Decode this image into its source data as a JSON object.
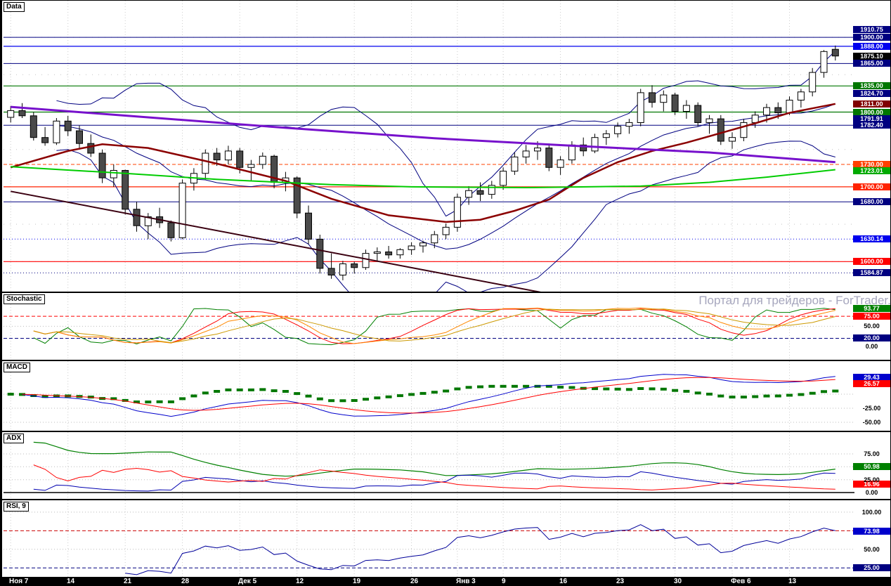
{
  "app": {
    "watermark": "Портал для трейдеров - ForTrader.ru"
  },
  "panels": {
    "main": {
      "label": "Data"
    },
    "stoch": {
      "label": "Stochastic"
    },
    "macd": {
      "label": "MACD"
    },
    "adx": {
      "label": "ADX"
    },
    "rsi": {
      "label": "RSI, 9"
    }
  },
  "time_axis": [
    {
      "text": "Ноя 7",
      "bar": 0
    },
    {
      "text": "14",
      "bar": 5
    },
    {
      "text": "21",
      "bar": 10
    },
    {
      "text": "28",
      "bar": 15
    },
    {
      "text": "Дек 5",
      "bar": 20
    },
    {
      "text": "12",
      "bar": 25
    },
    {
      "text": "19",
      "bar": 30
    },
    {
      "text": "26",
      "bar": 35
    },
    {
      "text": "Янв 3",
      "bar": 39
    },
    {
      "text": "9",
      "bar": 43
    },
    {
      "text": "16",
      "bar": 48
    },
    {
      "text": "23",
      "bar": 53
    },
    {
      "text": "30",
      "bar": 58
    },
    {
      "text": "Фев 6",
      "bar": 63
    },
    {
      "text": "13",
      "bar": 68
    }
  ],
  "chart_data": [
    {
      "type": "candlestick",
      "panel": "main",
      "title": "Data",
      "ylim": [
        1558,
        1949
      ],
      "ohlc": [
        [
          1793,
          1808,
          1786,
          1802
        ],
        [
          1802,
          1812,
          1792,
          1795
        ],
        [
          1795,
          1800,
          1762,
          1766
        ],
        [
          1766,
          1780,
          1755,
          1759
        ],
        [
          1759,
          1792,
          1756,
          1788
        ],
        [
          1788,
          1795,
          1768,
          1775
        ],
        [
          1775,
          1782,
          1752,
          1758
        ],
        [
          1758,
          1770,
          1740,
          1745
        ],
        [
          1745,
          1750,
          1705,
          1712
        ],
        [
          1712,
          1730,
          1700,
          1722
        ],
        [
          1722,
          1723,
          1663,
          1670
        ],
        [
          1670,
          1680,
          1640,
          1648
        ],
        [
          1648,
          1665,
          1630,
          1660
        ],
        [
          1660,
          1672,
          1645,
          1652
        ],
        [
          1652,
          1655,
          1627,
          1632
        ],
        [
          1632,
          1710,
          1630,
          1705
        ],
        [
          1705,
          1725,
          1695,
          1718
        ],
        [
          1718,
          1750,
          1710,
          1745
        ],
        [
          1745,
          1752,
          1728,
          1736
        ],
        [
          1736,
          1755,
          1730,
          1748
        ],
        [
          1748,
          1752,
          1718,
          1726
        ],
        [
          1726,
          1736,
          1708,
          1730
        ],
        [
          1730,
          1746,
          1724,
          1741
        ],
        [
          1741,
          1743,
          1698,
          1706
        ],
        [
          1706,
          1720,
          1694,
          1712
        ],
        [
          1712,
          1714,
          1658,
          1665
        ],
        [
          1665,
          1675,
          1623,
          1630
        ],
        [
          1630,
          1636,
          1584,
          1591
        ],
        [
          1591,
          1611,
          1577,
          1582
        ],
        [
          1582,
          1601,
          1575,
          1597
        ],
        [
          1597,
          1600,
          1584,
          1592
        ],
        [
          1592,
          1616,
          1589,
          1611
        ],
        [
          1611,
          1619,
          1600,
          1613
        ],
        [
          1613,
          1621,
          1604,
          1609
        ],
        [
          1609,
          1618,
          1604,
          1616
        ],
        [
          1616,
          1626,
          1609,
          1621
        ],
        [
          1621,
          1628,
          1612,
          1625
        ],
        [
          1625,
          1641,
          1618,
          1636
        ],
        [
          1636,
          1651,
          1630,
          1646
        ],
        [
          1646,
          1691,
          1640,
          1686
        ],
        [
          1686,
          1701,
          1676,
          1695
        ],
        [
          1695,
          1706,
          1681,
          1690
        ],
        [
          1690,
          1708,
          1684,
          1702
        ],
        [
          1702,
          1726,
          1696,
          1721
        ],
        [
          1721,
          1746,
          1716,
          1740
        ],
        [
          1740,
          1756,
          1731,
          1748
        ],
        [
          1748,
          1761,
          1736,
          1752
        ],
        [
          1752,
          1758,
          1721,
          1726
        ],
        [
          1726,
          1741,
          1716,
          1736
        ],
        [
          1736,
          1761,
          1731,
          1756
        ],
        [
          1756,
          1766,
          1741,
          1748
        ],
        [
          1748,
          1771,
          1745,
          1766
        ],
        [
          1766,
          1776,
          1756,
          1771
        ],
        [
          1771,
          1786,
          1766,
          1781
        ],
        [
          1781,
          1791,
          1771,
          1786
        ],
        [
          1786,
          1831,
          1781,
          1826
        ],
        [
          1826,
          1836,
          1806,
          1813
        ],
        [
          1813,
          1829,
          1801,
          1823
        ],
        [
          1823,
          1826,
          1796,
          1801
        ],
        [
          1801,
          1816,
          1791,
          1809
        ],
        [
          1809,
          1813,
          1781,
          1786
        ],
        [
          1786,
          1796,
          1771,
          1791
        ],
        [
          1791,
          1796,
          1756,
          1761
        ],
        [
          1761,
          1773,
          1751,
          1766
        ],
        [
          1766,
          1791,
          1761,
          1786
        ],
        [
          1786,
          1801,
          1779,
          1796
        ],
        [
          1796,
          1811,
          1786,
          1806
        ],
        [
          1806,
          1813,
          1791,
          1799
        ],
        [
          1799,
          1821,
          1796,
          1816
        ],
        [
          1816,
          1831,
          1806,
          1827
        ],
        [
          1827,
          1859,
          1821,
          1853
        ],
        [
          1853,
          1883,
          1846,
          1881
        ],
        [
          1884,
          1889,
          1869,
          1875.1
        ]
      ],
      "bollinger": {
        "period": 14,
        "mult": 2,
        "color": "#000080"
      },
      "overlays": [
        {
          "name": "ma-slow-darkred",
          "color": "#8b0000",
          "width": 2.5,
          "points": [
            [
              0,
              1726
            ],
            [
              5,
              1748
            ],
            [
              8,
              1757
            ],
            [
              12,
              1752
            ],
            [
              18,
              1731
            ],
            [
              24,
              1708
            ],
            [
              28,
              1684
            ],
            [
              33,
              1662
            ],
            [
              38,
              1653
            ],
            [
              41,
              1656
            ],
            [
              44,
              1668
            ],
            [
              47,
              1683
            ],
            [
              50,
              1712
            ],
            [
              53,
              1733
            ],
            [
              56,
              1748
            ],
            [
              59,
              1759
            ],
            [
              62,
              1772
            ],
            [
              65,
              1785
            ],
            [
              68,
              1799
            ],
            [
              72,
              1811
            ]
          ]
        },
        {
          "name": "ma-purple",
          "color": "#7711cc",
          "width": 3,
          "points": [
            [
              0,
              1807
            ],
            [
              12,
              1793
            ],
            [
              24,
              1779
            ],
            [
              37,
              1765
            ],
            [
              49,
              1755
            ],
            [
              61,
              1746
            ],
            [
              72,
              1733
            ]
          ]
        },
        {
          "name": "ma-green",
          "color": "#00cc00",
          "width": 2,
          "points": [
            [
              0,
              1727
            ],
            [
              10,
              1718
            ],
            [
              18,
              1710
            ],
            [
              28,
              1703
            ],
            [
              35,
              1700
            ],
            [
              45,
              1699
            ],
            [
              55,
              1701
            ],
            [
              61,
              1706
            ],
            [
              66,
              1713
            ],
            [
              72,
              1723
            ]
          ]
        },
        {
          "name": "trendline-down",
          "color": "#3a0010",
          "width": 2,
          "points": [
            [
              0,
              1694
            ],
            [
              48,
              1554
            ]
          ]
        }
      ],
      "grid_prices": [
        1900,
        1850,
        1800,
        1750,
        1700,
        1650,
        1600
      ],
      "hlines": [
        {
          "price": 1900.0,
          "color": "#000080",
          "style": "solid",
          "width": 1
        },
        {
          "price": 1888.0,
          "color": "#0000ee",
          "style": "solid",
          "width": 1.2
        },
        {
          "price": 1865.0,
          "color": "#000080",
          "style": "solid",
          "width": 1
        },
        {
          "price": 1835.0,
          "color": "#007700",
          "style": "solid",
          "width": 1.2
        },
        {
          "price": 1800.0,
          "color": "#007700",
          "style": "solid",
          "width": 1.2
        },
        {
          "price": 1782.4,
          "color": "#000080",
          "style": "solid",
          "width": 1
        },
        {
          "price": 1730.0,
          "color": "#ff4000",
          "style": "dashed",
          "width": 1
        },
        {
          "price": 1700.0,
          "color": "#ff2200",
          "style": "solid",
          "width": 1.2
        },
        {
          "price": 1680.0,
          "color": "#000080",
          "style": "solid",
          "width": 1
        },
        {
          "price": 1630.14,
          "color": "#0000ee",
          "style": "dotted",
          "width": 1
        },
        {
          "price": 1600.0,
          "color": "#ff0000",
          "style": "solid",
          "width": 1.2
        },
        {
          "price": 1584.87,
          "color": "#000080",
          "style": "dotted",
          "width": 1
        }
      ],
      "price_tags": [
        {
          "text": "1910.75",
          "value": 1910.75,
          "bg": "#000080"
        },
        {
          "text": "1900.00",
          "value": 1900.0,
          "bg": "#000080"
        },
        {
          "text": "1888.00",
          "value": 1888.0,
          "bg": "#0000ee"
        },
        {
          "text": "1875.10",
          "value": 1875.1,
          "bg": "#000000"
        },
        {
          "text": "1865.00",
          "value": 1865.0,
          "bg": "#000080"
        },
        {
          "text": "1835.00",
          "value": 1835.0,
          "bg": "#007700"
        },
        {
          "text": "1824.70",
          "value": 1824.7,
          "bg": "#000080"
        },
        {
          "text": "1811.00",
          "value": 1811.0,
          "bg": "#800000"
        },
        {
          "text": "1800.00",
          "value": 1800.0,
          "bg": "#007700"
        },
        {
          "text": "1791.91",
          "value": 1791.91,
          "bg": "#000080"
        },
        {
          "text": "1782.40",
          "value": 1782.4,
          "bg": "#000080"
        },
        {
          "text": "1730.00",
          "value": 1730.0,
          "bg": "#ff4000"
        },
        {
          "text": "1723.01",
          "value": 1723.01,
          "bg": "#00aa00"
        },
        {
          "text": "1700.00",
          "value": 1700.0,
          "bg": "#ff2200"
        },
        {
          "text": "1680.00",
          "value": 1680.0,
          "bg": "#000080"
        },
        {
          "text": "1630.14",
          "value": 1630.14,
          "bg": "#0000ee"
        },
        {
          "text": "1600.00",
          "value": 1600.0,
          "bg": "#ff0000"
        },
        {
          "text": "1584.87",
          "value": 1584.87,
          "bg": "#000080"
        }
      ]
    },
    {
      "type": "stochastic",
      "panel": "stoch",
      "title": "Stochastic",
      "ylim": [
        -37,
        133
      ],
      "series": [
        {
          "name": "k-fast",
          "period": 5,
          "smooth": 2,
          "color": "#008000"
        },
        {
          "name": "d-mid",
          "period": 9,
          "smooth": 5,
          "color": "#ff0000"
        },
        {
          "name": "k-slow",
          "period": 14,
          "smooth": 5,
          "color": "#ff8800"
        },
        {
          "name": "d-slow",
          "period": 14,
          "smooth": 9,
          "color": "#cc9900"
        }
      ],
      "levels": [
        {
          "value": 75,
          "color": "#ff0000",
          "style": "dashed",
          "width": 1
        },
        {
          "value": 50,
          "color": "#bbbbbb",
          "style": "dotted",
          "width": 1
        },
        {
          "value": 20,
          "color": "#000080",
          "style": "dashed",
          "width": 1
        }
      ],
      "tags": [
        {
          "text": "93.77",
          "value": 93.77,
          "bg": "#008000"
        },
        {
          "text": "75.00",
          "value": 75,
          "bg": "#ff0000"
        },
        {
          "text": "20.00",
          "value": 20,
          "bg": "#000080"
        }
      ],
      "scale_texts": [
        {
          "text": "50.00",
          "value": 50
        },
        {
          "text": "0.00",
          "value": 0
        }
      ]
    },
    {
      "type": "macd",
      "panel": "macd",
      "title": "MACD",
      "ylim": [
        -67.5,
        58.75
      ],
      "fast": 12,
      "slow": 26,
      "signal": 9,
      "colors": {
        "macd": "#0000cc",
        "signal": "#ff0000",
        "hist": "#007700"
      },
      "levels": [
        {
          "value": 0,
          "color": "#bbbbbb",
          "style": "dotted",
          "width": 1
        },
        {
          "value": -25,
          "color": "#bbbbbb",
          "style": "dotted",
          "width": 1
        },
        {
          "value": -50,
          "color": "#bbbbbb",
          "style": "dotted",
          "width": 1
        }
      ],
      "tags": [
        {
          "text": "29.43",
          "value": 29.43,
          "bg": "#0000cc"
        },
        {
          "text": "26.57",
          "value": 26.57,
          "bg": "#ff0000"
        }
      ],
      "scale_texts": [
        {
          "text": "-25.00",
          "value": -25
        },
        {
          "text": "-50.00",
          "value": -50
        }
      ]
    },
    {
      "type": "adx",
      "panel": "adx",
      "title": "ADX",
      "ylim": [
        -15,
        117.3
      ],
      "period": 9,
      "colors": {
        "adx": "#008000",
        "plus_di": "#0000b0",
        "minus_di": "#ff0000"
      },
      "levels": [
        {
          "value": 75,
          "color": "#bbbbbb",
          "style": "dotted",
          "width": 1
        },
        {
          "value": 50,
          "color": "#bbbbbb",
          "style": "dotted",
          "width": 1
        },
        {
          "value": 25,
          "color": "#bbbbbb",
          "style": "dotted",
          "width": 1
        },
        {
          "value": 0,
          "color": "#000000",
          "style": "solid",
          "width": 1.5
        }
      ],
      "tags": [
        {
          "text": "50.98",
          "value": 50.98,
          "bg": "#008000"
        },
        {
          "text": "16.96",
          "value": 16.96,
          "bg": "#ff0000"
        }
      ],
      "scale_texts": [
        {
          "text": "75.00",
          "value": 75
        },
        {
          "text": "25.00",
          "value": 25
        },
        {
          "text": "0.00",
          "value": 0
        }
      ]
    },
    {
      "type": "rsi",
      "panel": "rsi",
      "title": "RSI, 9",
      "ylim": [
        13,
        116
      ],
      "period": 9,
      "color": "#000099",
      "levels": [
        {
          "value": 100,
          "color": "#bbbbbb",
          "style": "dotted",
          "width": 1
        },
        {
          "value": 75,
          "color": "#cc0000",
          "style": "dashed",
          "width": 1
        },
        {
          "value": 50,
          "color": "#bbbbbb",
          "style": "dotted",
          "width": 1
        },
        {
          "value": 25,
          "color": "#000080",
          "style": "dashed",
          "width": 1
        }
      ],
      "tags": [
        {
          "text": "73.98",
          "value": 73.98,
          "bg": "#0000cc"
        },
        {
          "text": "25.00",
          "value": 25,
          "bg": "#000080"
        }
      ],
      "scale_texts": [
        {
          "text": "100.00",
          "value": 100
        },
        {
          "text": "50.00",
          "value": 50
        }
      ]
    }
  ]
}
